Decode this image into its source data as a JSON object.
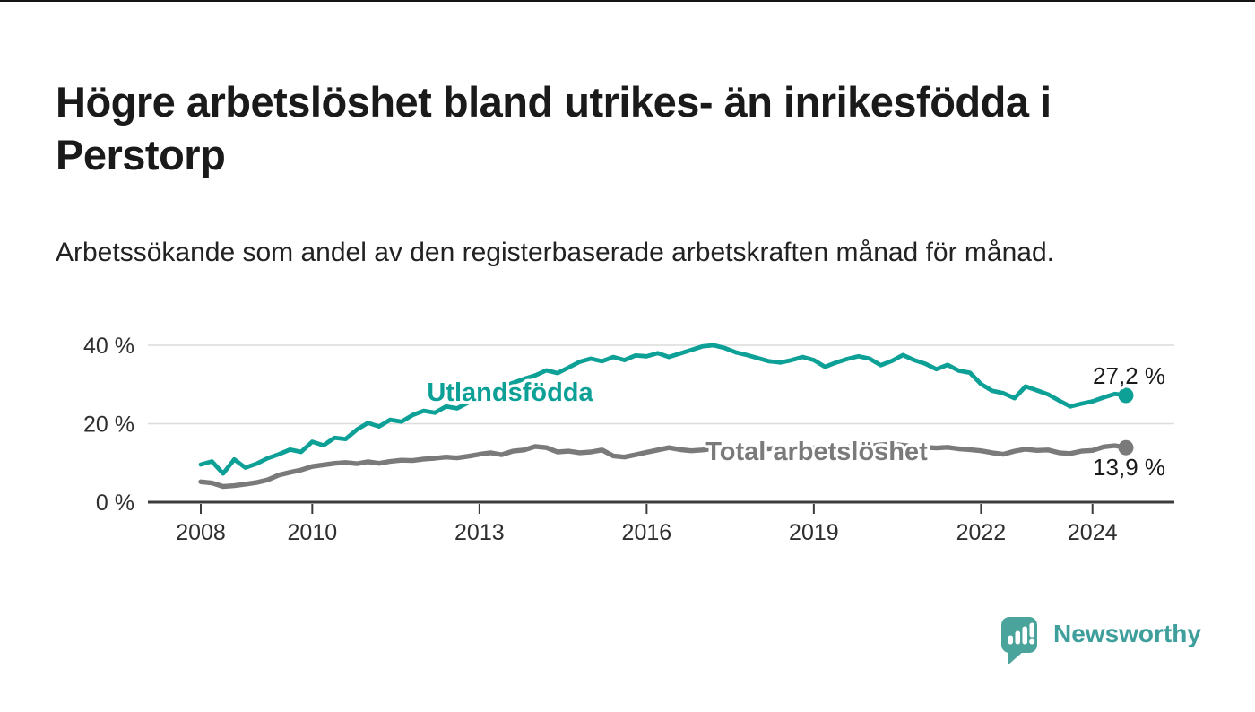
{
  "header": {
    "title": "Högre arbetslöshet bland utrikes- än inrikesfödda i Perstorp",
    "subtitle": "Arbetssökande som andel av den registerbaserade arbetskraften månad för månad."
  },
  "chart_data": {
    "type": "line",
    "title": "Högre arbetslöshet bland utrikes- än inrikesfödda i Perstorp",
    "xlabel": "",
    "ylabel": "",
    "xlim": [
      2007.05,
      2025.45
    ],
    "ylim": [
      0,
      42
    ],
    "grid": "horizontal-at-20-and-40",
    "legend": "inline-labels-on-lines",
    "x": [
      2008.0,
      2008.2,
      2008.4,
      2008.6,
      2008.8,
      2009.0,
      2009.2,
      2009.4,
      2009.6,
      2009.8,
      2010.0,
      2010.2,
      2010.4,
      2010.6,
      2010.8,
      2011.0,
      2011.2,
      2011.4,
      2011.6,
      2011.8,
      2012.0,
      2012.2,
      2012.4,
      2012.6,
      2012.8,
      2013.0,
      2013.2,
      2013.4,
      2013.6,
      2013.8,
      2014.0,
      2014.2,
      2014.4,
      2014.6,
      2014.8,
      2015.0,
      2015.2,
      2015.4,
      2015.6,
      2015.8,
      2016.0,
      2016.2,
      2016.4,
      2016.6,
      2016.8,
      2017.0,
      2017.2,
      2017.4,
      2017.6,
      2017.8,
      2018.0,
      2018.2,
      2018.4,
      2018.6,
      2018.8,
      2019.0,
      2019.2,
      2019.4,
      2019.6,
      2019.8,
      2020.0,
      2020.2,
      2020.4,
      2020.6,
      2020.8,
      2021.0,
      2021.2,
      2021.4,
      2021.6,
      2021.8,
      2022.0,
      2022.2,
      2022.4,
      2022.6,
      2022.8,
      2023.0,
      2023.2,
      2023.4,
      2023.6,
      2023.8,
      2024.0,
      2024.2,
      2024.4,
      2024.6
    ],
    "series": [
      {
        "name": "Utlandsfödda",
        "color": "#0da096",
        "end_label": "27,2 %",
        "end_value": 27.2,
        "values": [
          9.6,
          10.4,
          7.3,
          10.9,
          8.8,
          9.8,
          11.2,
          12.2,
          13.4,
          12.8,
          15.4,
          14.5,
          16.4,
          16.1,
          18.5,
          20.2,
          19.3,
          21.0,
          20.5,
          22.2,
          23.3,
          22.8,
          24.4,
          23.9,
          25.4,
          26.8,
          27.9,
          29.3,
          30.4,
          31.4,
          32.3,
          33.6,
          32.9,
          34.3,
          35.8,
          36.6,
          35.9,
          37.0,
          36.2,
          37.4,
          37.2,
          38.0,
          37.0,
          37.9,
          38.8,
          39.7,
          40.0,
          39.3,
          38.2,
          37.5,
          36.7,
          35.9,
          35.6,
          36.2,
          37.0,
          36.2,
          34.5,
          35.6,
          36.5,
          37.2,
          36.6,
          34.9,
          36.0,
          37.5,
          36.2,
          35.3,
          33.9,
          35.0,
          33.5,
          33.0,
          30.1,
          28.4,
          27.8,
          26.5,
          29.5,
          28.5,
          27.5,
          25.9,
          24.4,
          25.1,
          25.7,
          26.7,
          27.6,
          27.2
        ]
      },
      {
        "name": "Total arbetslöshet",
        "color": "#7a7a7a",
        "end_label": "13,9 %",
        "end_value": 13.9,
        "values": [
          5.2,
          4.9,
          4.0,
          4.2,
          4.6,
          5.0,
          5.7,
          6.9,
          7.6,
          8.2,
          9.1,
          9.5,
          9.9,
          10.1,
          9.8,
          10.3,
          9.9,
          10.4,
          10.7,
          10.6,
          11.0,
          11.2,
          11.5,
          11.3,
          11.7,
          12.2,
          12.6,
          12.1,
          13.0,
          13.3,
          14.2,
          13.9,
          12.8,
          13.0,
          12.6,
          12.8,
          13.3,
          11.8,
          11.5,
          12.1,
          12.7,
          13.3,
          13.9,
          13.4,
          13.1,
          13.3,
          13.6,
          13.4,
          13.7,
          13.5,
          13.8,
          13.6,
          13.9,
          13.7,
          14.0,
          13.8,
          14.1,
          13.9,
          14.2,
          14.0,
          14.3,
          14.6,
          14.8,
          14.5,
          14.2,
          14.0,
          13.8,
          14.0,
          13.6,
          13.4,
          13.1,
          12.6,
          12.2,
          13.0,
          13.5,
          13.2,
          13.3,
          12.6,
          12.4,
          13.0,
          13.2,
          14.1,
          14.4,
          13.9
        ]
      }
    ],
    "xticks": {
      "values": [
        2008,
        2010,
        2013,
        2016,
        2019,
        2022,
        2024
      ],
      "labels": [
        "2008",
        "2010",
        "2013",
        "2016",
        "2019",
        "2022",
        "2024"
      ]
    },
    "yticks": {
      "values": [
        0,
        20,
        40
      ],
      "labels": [
        "0 %",
        "20 %",
        "40 %"
      ]
    }
  },
  "footer": {
    "brand": "Newsworthy"
  },
  "colors": {
    "accent_teal": "#0da096",
    "line_gray": "#7a7a7a",
    "logo_teal": "#4ba49c",
    "logo_text_teal": "#3f9f9c",
    "grid": "#dcdcdc",
    "axis": "#3b3b3b",
    "text": "#1a1a1a"
  }
}
